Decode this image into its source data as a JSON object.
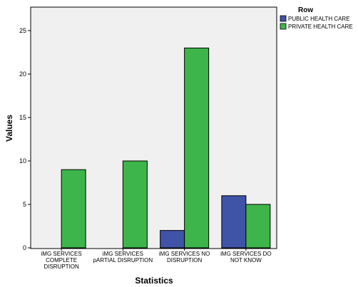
{
  "chart_data": {
    "type": "bar",
    "categories": [
      [
        "iMG SERVICES",
        "COMPLETE",
        "DISRUPTION"
      ],
      [
        "iMG SERVICES",
        "pARTIAL DISRUPTION"
      ],
      [
        "iMG SERVICES NO",
        "DISRUPTION"
      ],
      [
        "iMG SERVICES DO",
        "NOT KNOW"
      ]
    ],
    "series": [
      {
        "name": "PUBLIC HEALTH CARE",
        "values": [
          0,
          0,
          2,
          6
        ],
        "color": "#3f53a7"
      },
      {
        "name": "PRIVATE HEALTH CARE",
        "values": [
          9,
          10,
          23,
          5
        ],
        "color": "#3db54a"
      }
    ],
    "xlabel": "Statistics",
    "ylabel": "Values",
    "ylim": [
      0,
      27
    ],
    "yticks": [
      0,
      5,
      10,
      15,
      20,
      25
    ],
    "legend_title": "Row",
    "legend_position": "top-right",
    "plot_background": "#f0f0f0",
    "grid": false
  }
}
